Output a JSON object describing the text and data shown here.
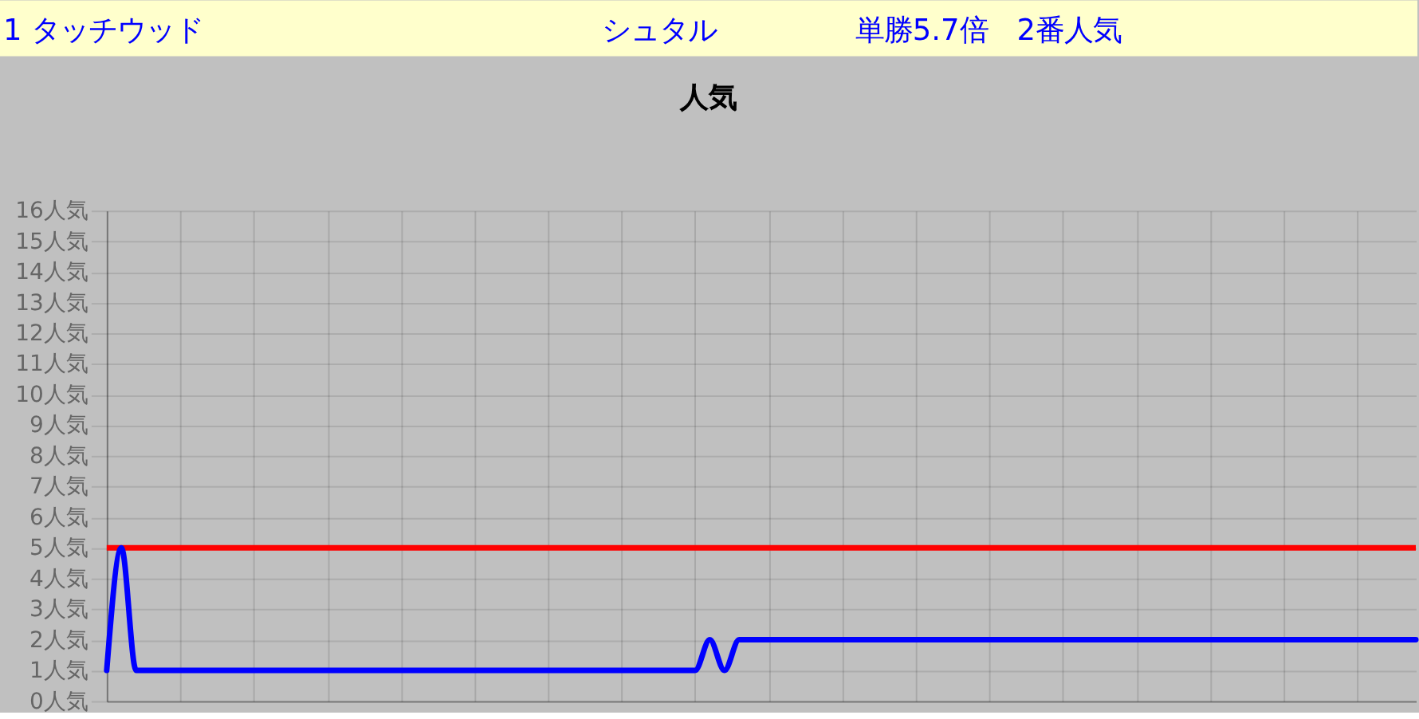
{
  "chart_data": {
    "type": "line",
    "title": "人気",
    "annotations": [
      "1 タッチウッド",
      "シュタル",
      "単勝5.7倍　2番人気"
    ],
    "categories": [
      null,
      null,
      null,
      null,
      null,
      null,
      null,
      null,
      null,
      null,
      null,
      null,
      null,
      null,
      null,
      null,
      null,
      null,
      null,
      null,
      null,
      null,
      null,
      null,
      null,
      null,
      null,
      null,
      null,
      null,
      null,
      null,
      null,
      null,
      null,
      null,
      null,
      null,
      null,
      null,
      null,
      null,
      null,
      null,
      null,
      null,
      null,
      null,
      null,
      null,
      null,
      null,
      null,
      null,
      null,
      null,
      null,
      null,
      null,
      null,
      null,
      null,
      null,
      null,
      null,
      null,
      null,
      null,
      null,
      null,
      null,
      null,
      null,
      null,
      null,
      null,
      null,
      null,
      null,
      null,
      null,
      null,
      null,
      null,
      null,
      null,
      null,
      null,
      null,
      null
    ],
    "series": [
      {
        "color": "#0000ff",
        "values": [
          1,
          5,
          1,
          1,
          1,
          1,
          1,
          1,
          1,
          1,
          1,
          1,
          1,
          1,
          1,
          1,
          1,
          1,
          1,
          1,
          1,
          1,
          1,
          1,
          1,
          1,
          1,
          1,
          1,
          1,
          1,
          1,
          1,
          1,
          1,
          1,
          1,
          1,
          1,
          1,
          1,
          2,
          1,
          2,
          2,
          2,
          2,
          2,
          2,
          2,
          2,
          2,
          2,
          2,
          2,
          2,
          2,
          2,
          2,
          2,
          2,
          2,
          2,
          2,
          2,
          2,
          2,
          2,
          2,
          2,
          2,
          2,
          2,
          2,
          2,
          2,
          2,
          2,
          2,
          2,
          2,
          2,
          2,
          2,
          2,
          2,
          2,
          2,
          2,
          2
        ]
      }
    ],
    "ylim": [
      0,
      16
    ],
    "yticks": [
      {
        "value": 0,
        "label": "0人気"
      },
      {
        "value": 1,
        "label": "1人気"
      },
      {
        "value": 2,
        "label": "2人気"
      },
      {
        "value": 3,
        "label": "3人気"
      },
      {
        "value": 4,
        "label": "4人気"
      },
      {
        "value": 5,
        "label": "5人気"
      },
      {
        "value": 6,
        "label": "6人気"
      },
      {
        "value": 7,
        "label": "7人気"
      },
      {
        "value": 8,
        "label": "8人気"
      },
      {
        "value": 9,
        "label": "9人気"
      },
      {
        "value": 10,
        "label": "10人気"
      },
      {
        "value": 11,
        "label": "11人気"
      },
      {
        "value": 12,
        "label": "12人気"
      },
      {
        "value": 13,
        "label": "13人気"
      },
      {
        "value": 14,
        "label": "14人気"
      },
      {
        "value": 15,
        "label": "15人気"
      },
      {
        "value": 16,
        "label": "16人気"
      }
    ],
    "ref_lines": [
      {
        "axis": "y",
        "value": 5,
        "color": "#ff0000"
      }
    ],
    "grid": true,
    "tick_labels": "y",
    "line_style": "solid"
  }
}
